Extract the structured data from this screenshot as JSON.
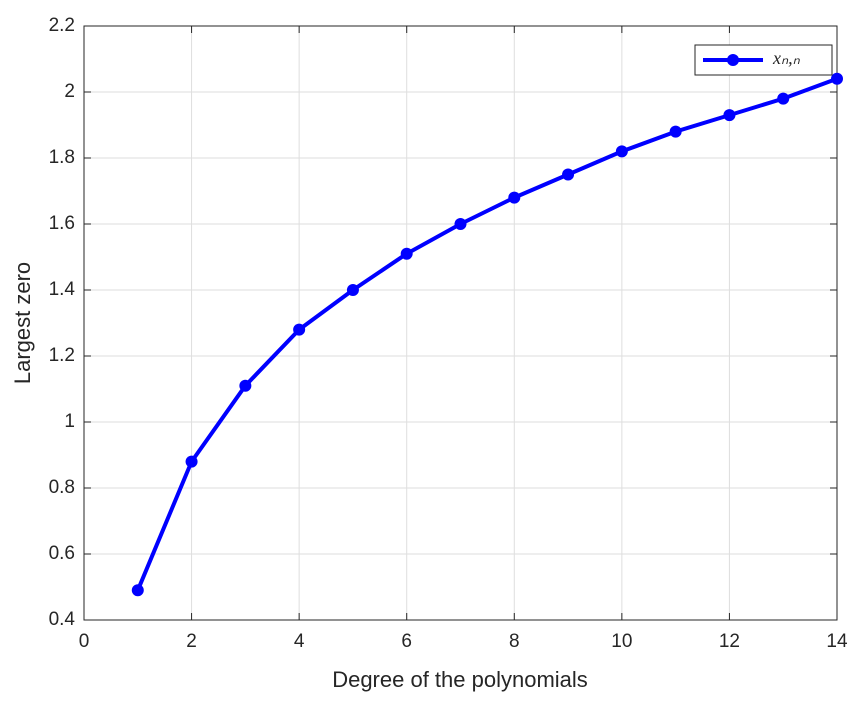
{
  "chart_data": {
    "type": "line",
    "xlabel": "Degree of the polynomials",
    "ylabel": "Largest zero",
    "x": [
      1,
      2,
      3,
      4,
      5,
      6,
      7,
      8,
      9,
      10,
      11,
      12,
      13,
      14
    ],
    "series": [
      {
        "name": "xₙ,ₙ",
        "color": "#0000ff",
        "values": [
          0.49,
          0.88,
          1.11,
          1.28,
          1.4,
          1.51,
          1.6,
          1.68,
          1.75,
          1.82,
          1.88,
          1.93,
          1.98,
          2.04
        ]
      }
    ],
    "xlim": [
      0,
      14
    ],
    "xticks": [
      0,
      2,
      4,
      6,
      8,
      10,
      12,
      14
    ],
    "ylim": [
      0.4,
      2.2
    ],
    "yticks": [
      0.4,
      0.6,
      0.8,
      1,
      1.2,
      1.4,
      1.6,
      1.8,
      2,
      2.2
    ],
    "grid": true,
    "legend": "northeast"
  }
}
